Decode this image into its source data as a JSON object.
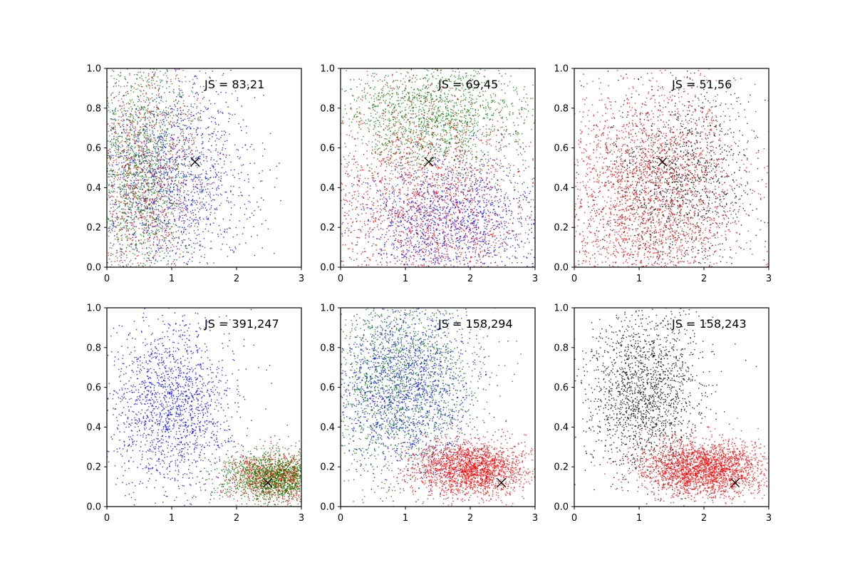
{
  "chart_data": [
    {
      "type": "scatter",
      "annotation": "JS = 83,21",
      "xlim": [
        0,
        3
      ],
      "ylim": [
        0,
        1
      ],
      "xticks": [
        "0",
        "1",
        "2",
        "3"
      ],
      "yticks": [
        "0.0",
        "0.2",
        "0.4",
        "0.6",
        "0.8",
        "1.0"
      ],
      "marker": {
        "x": 1.36,
        "y": 0.53
      },
      "clouds": [
        {
          "color": "#0000ff",
          "count": 1500,
          "cx": 1.0,
          "cy": 0.45,
          "sx": 0.65,
          "sy": 0.25
        },
        {
          "color": "#ff0000",
          "count": 900,
          "cx": 0.55,
          "cy": 0.45,
          "sx": 0.45,
          "sy": 0.3
        },
        {
          "color": "#008000",
          "count": 1300,
          "cx": 0.5,
          "cy": 0.5,
          "sx": 0.42,
          "sy": 0.32
        }
      ]
    },
    {
      "type": "scatter",
      "annotation": "JS = 69,45",
      "xlim": [
        0,
        3
      ],
      "ylim": [
        0,
        1
      ],
      "xticks": [
        "0",
        "1",
        "2",
        "3"
      ],
      "yticks": [
        "0.0",
        "0.2",
        "0.4",
        "0.6",
        "0.8",
        "1.0"
      ],
      "marker": {
        "x": 1.36,
        "y": 0.53
      },
      "clouds": [
        {
          "color": "#008000",
          "count": 1500,
          "cx": 1.4,
          "cy": 0.75,
          "sx": 0.75,
          "sy": 0.15
        },
        {
          "color": "#0000ff",
          "count": 1400,
          "cx": 1.7,
          "cy": 0.22,
          "sx": 0.75,
          "sy": 0.17
        },
        {
          "color": "#ff0000",
          "count": 1700,
          "cx": 1.3,
          "cy": 0.3,
          "sx": 0.85,
          "sy": 0.35
        }
      ]
    },
    {
      "type": "scatter",
      "annotation": "JS = 51,56",
      "xlim": [
        0,
        3
      ],
      "ylim": [
        0,
        1
      ],
      "xticks": [
        "0",
        "1",
        "2",
        "3"
      ],
      "yticks": [
        "0.0",
        "0.2",
        "0.4",
        "0.6",
        "0.8",
        "1.0"
      ],
      "marker": {
        "x": 1.36,
        "y": 0.53
      },
      "clouds": [
        {
          "color": "#000000",
          "count": 1300,
          "cx": 1.6,
          "cy": 0.42,
          "sx": 0.6,
          "sy": 0.25
        },
        {
          "color": "#ff0000",
          "count": 2200,
          "cx": 1.1,
          "cy": 0.35,
          "sx": 0.75,
          "sy": 0.32
        }
      ]
    },
    {
      "type": "scatter",
      "annotation": "JS = 391,247",
      "xlim": [
        0,
        3
      ],
      "ylim": [
        0,
        1
      ],
      "xticks": [
        "0",
        "1",
        "2",
        "3"
      ],
      "yticks": [
        "0.0",
        "0.2",
        "0.4",
        "0.6",
        "0.8",
        "1.0"
      ],
      "marker": {
        "x": 2.48,
        "y": 0.12
      },
      "clouds": [
        {
          "color": "#0000ff",
          "count": 1700,
          "cx": 1.0,
          "cy": 0.5,
          "sx": 0.5,
          "sy": 0.22
        },
        {
          "color": "#ff0000",
          "count": 900,
          "cx": 2.6,
          "cy": 0.15,
          "sx": 0.4,
          "sy": 0.06
        },
        {
          "color": "#008000",
          "count": 1200,
          "cx": 2.6,
          "cy": 0.15,
          "sx": 0.4,
          "sy": 0.06
        }
      ]
    },
    {
      "type": "scatter",
      "annotation": "JS = 158,294",
      "xlim": [
        0,
        3
      ],
      "ylim": [
        0,
        1
      ],
      "xticks": [
        "0",
        "1",
        "2",
        "3"
      ],
      "yticks": [
        "0.0",
        "0.2",
        "0.4",
        "0.6",
        "0.8",
        "1.0"
      ],
      "marker": {
        "x": 2.48,
        "y": 0.12
      },
      "clouds": [
        {
          "color": "#0000ff",
          "count": 1700,
          "cx": 1.0,
          "cy": 0.6,
          "sx": 0.55,
          "sy": 0.22
        },
        {
          "color": "#008000",
          "count": 1300,
          "cx": 0.9,
          "cy": 0.62,
          "sx": 0.6,
          "sy": 0.25
        },
        {
          "color": "#ff0000",
          "count": 2000,
          "cx": 2.0,
          "cy": 0.19,
          "sx": 0.45,
          "sy": 0.07
        }
      ]
    },
    {
      "type": "scatter",
      "annotation": "JS = 158,243",
      "xlim": [
        0,
        3
      ],
      "ylim": [
        0,
        1
      ],
      "xticks": [
        "0",
        "1",
        "2",
        "3"
      ],
      "yticks": [
        "0.0",
        "0.2",
        "0.4",
        "0.6",
        "0.8",
        "1.0"
      ],
      "marker": {
        "x": 2.48,
        "y": 0.12
      },
      "clouds": [
        {
          "color": "#000000",
          "count": 1800,
          "cx": 1.1,
          "cy": 0.58,
          "sx": 0.45,
          "sy": 0.22
        },
        {
          "color": "#ff0000",
          "count": 2300,
          "cx": 2.0,
          "cy": 0.19,
          "sx": 0.48,
          "sy": 0.07
        }
      ]
    }
  ]
}
